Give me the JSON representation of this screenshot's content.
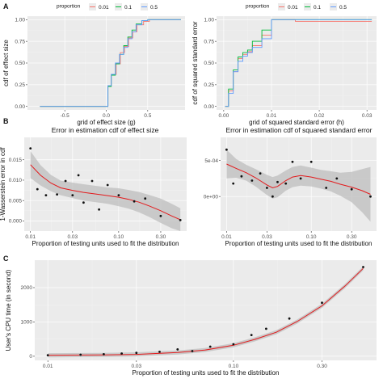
{
  "panel_labels": [
    "A",
    "B",
    "C"
  ],
  "colors": {
    "s001": "#F8766D",
    "s01": "#00BA38",
    "s05": "#619CFF",
    "smooth": "#e31a1c",
    "band": "#bdbdbd"
  },
  "chart_data": [
    {
      "type": "line",
      "panel": "A",
      "xlabel": "grid of effect size (g)",
      "ylabel": "cdf of effect size",
      "xlim": [
        -0.95,
        0.95
      ],
      "ylim": [
        -0.04,
        1.04
      ],
      "xticks": [
        -0.5,
        0.0,
        0.5
      ],
      "xtick_labels": [
        "-0.5",
        "0.0",
        "0.5"
      ],
      "yticks": [
        0,
        0.25,
        0.5,
        0.75,
        1
      ],
      "ytick_labels": [
        "0.00",
        "0.25",
        "0.50",
        "0.75",
        "1.00"
      ],
      "legend": {
        "title": "proportion",
        "placement": "top",
        "labels": [
          "0.01",
          "0.1",
          "0.5"
        ]
      },
      "series": [
        {
          "name": "0.01",
          "color": "#F8766D",
          "x": [
            -0.8,
            0.02,
            0.02,
            0.06,
            0.06,
            0.12,
            0.12,
            0.17,
            0.17,
            0.22,
            0.22,
            0.27,
            0.27,
            0.32,
            0.32,
            0.37,
            0.37,
            0.45,
            0.45,
            0.52,
            0.52,
            0.9
          ],
          "y": [
            0,
            0,
            0.24,
            0.24,
            0.37,
            0.37,
            0.49,
            0.49,
            0.62,
            0.62,
            0.69,
            0.69,
            0.79,
            0.79,
            0.86,
            0.86,
            0.94,
            0.94,
            0.98,
            0.98,
            1.0,
            1.0
          ]
        },
        {
          "name": "0.1",
          "color": "#00BA38",
          "x": [
            -0.8,
            0.02,
            0.02,
            0.06,
            0.06,
            0.11,
            0.11,
            0.16,
            0.16,
            0.21,
            0.21,
            0.26,
            0.26,
            0.31,
            0.31,
            0.36,
            0.36,
            0.43,
            0.43,
            0.5,
            0.5,
            0.9
          ],
          "y": [
            0,
            0,
            0.23,
            0.23,
            0.36,
            0.36,
            0.49,
            0.49,
            0.6,
            0.6,
            0.7,
            0.7,
            0.8,
            0.8,
            0.88,
            0.88,
            0.95,
            0.95,
            0.99,
            0.99,
            1.0,
            1.0
          ]
        },
        {
          "name": "0.5",
          "color": "#619CFF",
          "x": [
            -0.8,
            0.02,
            0.02,
            0.06,
            0.06,
            0.11,
            0.11,
            0.16,
            0.16,
            0.21,
            0.21,
            0.26,
            0.26,
            0.31,
            0.31,
            0.36,
            0.36,
            0.43,
            0.43,
            0.5,
            0.5,
            0.9
          ],
          "y": [
            0,
            0,
            0.24,
            0.24,
            0.37,
            0.37,
            0.5,
            0.5,
            0.6,
            0.6,
            0.68,
            0.68,
            0.78,
            0.78,
            0.86,
            0.86,
            0.94,
            0.94,
            0.99,
            0.99,
            1.0,
            1.0
          ]
        }
      ]
    },
    {
      "type": "line",
      "panel": "A",
      "xlabel": "grid of squared standard error (h)",
      "ylabel": "cdf of squared standard error",
      "xlim": [
        -0.0015,
        0.032
      ],
      "ylim": [
        -0.04,
        1.04
      ],
      "xticks": [
        0.0,
        0.01,
        0.02,
        0.03
      ],
      "xtick_labels": [
        "0.00",
        "0.01",
        "0.02",
        "0.03"
      ],
      "yticks": [
        0,
        0.25,
        0.5,
        0.75,
        1
      ],
      "ytick_labels": [
        "0.00",
        "0.25",
        "0.50",
        "0.75",
        "1.00"
      ],
      "legend": {
        "title": "proportion",
        "placement": "top",
        "labels": [
          "0.01",
          "0.1",
          "0.5"
        ]
      },
      "series": [
        {
          "name": "0.01",
          "color": "#F8766D",
          "x": [
            0.0003,
            0.001,
            0.001,
            0.002,
            0.002,
            0.003,
            0.003,
            0.004,
            0.004,
            0.005,
            0.005,
            0.006,
            0.006,
            0.008,
            0.008,
            0.01,
            0.01,
            0.015,
            0.015,
            0.031
          ],
          "y": [
            0.0,
            0.0,
            0.18,
            0.18,
            0.4,
            0.4,
            0.55,
            0.55,
            0.6,
            0.6,
            0.63,
            0.63,
            0.7,
            0.7,
            0.82,
            0.82,
            1.0,
            1.0,
            0.98,
            0.98
          ]
        },
        {
          "name": "0.1",
          "color": "#00BA38",
          "x": [
            0.0003,
            0.001,
            0.001,
            0.002,
            0.002,
            0.003,
            0.003,
            0.004,
            0.004,
            0.005,
            0.005,
            0.006,
            0.006,
            0.008,
            0.008,
            0.01,
            0.01,
            0.031
          ],
          "y": [
            0.0,
            0.0,
            0.2,
            0.2,
            0.42,
            0.42,
            0.57,
            0.57,
            0.62,
            0.62,
            0.65,
            0.65,
            0.75,
            0.75,
            0.88,
            0.88,
            1.0,
            1.0
          ]
        },
        {
          "name": "0.5",
          "color": "#619CFF",
          "x": [
            0.0003,
            0.001,
            0.001,
            0.002,
            0.002,
            0.003,
            0.003,
            0.004,
            0.004,
            0.005,
            0.005,
            0.006,
            0.006,
            0.008,
            0.008,
            0.01,
            0.01,
            0.031
          ],
          "y": [
            0.0,
            0.0,
            0.15,
            0.15,
            0.4,
            0.4,
            0.52,
            0.52,
            0.58,
            0.58,
            0.62,
            0.62,
            0.68,
            0.68,
            0.78,
            0.78,
            1.0,
            1.0
          ]
        }
      ]
    },
    {
      "type": "scatter",
      "panel": "B",
      "title": "Error in estimation cdf of effect size",
      "xlabel": "Proportion of testing units used to fit the distribution",
      "ylabel": "1-Wasserstein error in cdf",
      "x_scale": "log",
      "xlim": [
        0.0085,
        0.59
      ],
      "ylim": [
        -0.0025,
        0.0205
      ],
      "xticks": [
        0.01,
        0.03,
        0.1,
        0.3
      ],
      "xtick_labels": [
        "0.01",
        "0.03",
        "0.10",
        "0.30"
      ],
      "yticks": [
        0.0,
        0.005,
        0.01,
        0.015
      ],
      "ytick_labels": [
        "0.000",
        "0.005",
        "0.010",
        "0.015"
      ],
      "points": {
        "x": [
          0.01,
          0.012,
          0.015,
          0.02,
          0.025,
          0.03,
          0.035,
          0.04,
          0.05,
          0.06,
          0.075,
          0.1,
          0.15,
          0.2,
          0.3,
          0.5
        ],
        "y": [
          0.0178,
          0.0078,
          0.0063,
          0.0065,
          0.0098,
          0.0063,
          0.0112,
          0.0045,
          0.0098,
          0.0028,
          0.0088,
          0.0063,
          0.0048,
          0.0055,
          0.0012,
          0.0002
        ]
      },
      "smooth": {
        "x": [
          0.01,
          0.013,
          0.017,
          0.022,
          0.03,
          0.04,
          0.055,
          0.075,
          0.1,
          0.13,
          0.17,
          0.22,
          0.3,
          0.4,
          0.5
        ],
        "y": [
          0.0138,
          0.0112,
          0.0093,
          0.0081,
          0.0075,
          0.007,
          0.0066,
          0.0062,
          0.0058,
          0.0053,
          0.0046,
          0.0037,
          0.0025,
          0.0012,
          0.0003
        ],
        "lower": [
          0.0105,
          0.0087,
          0.0073,
          0.0063,
          0.0056,
          0.005,
          0.0046,
          0.0042,
          0.0036,
          0.003,
          0.0021,
          0.001,
          -0.0005,
          -0.0018,
          -0.0025
        ],
        "upper": [
          0.0171,
          0.0137,
          0.0113,
          0.0099,
          0.0094,
          0.009,
          0.0086,
          0.0082,
          0.008,
          0.0076,
          0.0071,
          0.0064,
          0.0055,
          0.0042,
          0.0031
        ]
      }
    },
    {
      "type": "scatter",
      "panel": "B",
      "title": "Error in estimation cdf of squared standard error",
      "xlabel": "Proportion of testing units used to fit the distribution",
      "ylabel": "",
      "x_scale": "log",
      "xlim": [
        0.0085,
        0.59
      ],
      "ylim": [
        -0.00048,
        0.00082
      ],
      "xticks": [
        0.01,
        0.03,
        0.1,
        0.3
      ],
      "xtick_labels": [
        "0.01",
        "0.03",
        "0.10",
        "0.30"
      ],
      "yticks": [
        0.0,
        0.0005
      ],
      "ytick_labels": [
        "0e+00",
        "5e-04"
      ],
      "points": {
        "x": [
          0.01,
          0.012,
          0.015,
          0.02,
          0.025,
          0.03,
          0.035,
          0.04,
          0.05,
          0.06,
          0.075,
          0.1,
          0.15,
          0.2,
          0.3,
          0.5
        ],
        "y": [
          0.00065,
          0.00018,
          0.00028,
          0.00022,
          0.00032,
          0.00012,
          0.0,
          0.0002,
          0.00018,
          0.00048,
          0.00025,
          0.00048,
          0.00012,
          0.00025,
          0.0001,
          0.0
        ]
      },
      "smooth": {
        "x": [
          0.01,
          0.013,
          0.017,
          0.022,
          0.03,
          0.035,
          0.04,
          0.05,
          0.06,
          0.075,
          0.1,
          0.13,
          0.17,
          0.22,
          0.3,
          0.4,
          0.5
        ],
        "y": [
          0.00045,
          0.00039,
          0.00033,
          0.00026,
          0.00016,
          0.00012,
          0.00014,
          0.00022,
          0.00027,
          0.00029,
          0.00027,
          0.00024,
          0.00021,
          0.00017,
          0.00013,
          8e-05,
          3e-05
        ],
        "lower": [
          0.00025,
          0.00026,
          0.00022,
          0.00014,
          2e-05,
          -3e-05,
          -1e-05,
          8e-05,
          0.00013,
          0.00015,
          0.00014,
          0.00011,
          7e-05,
          1e-05,
          -8e-05,
          -0.00022,
          -0.00035
        ],
        "upper": [
          0.00065,
          0.00052,
          0.00044,
          0.00038,
          0.0003,
          0.00027,
          0.00029,
          0.00036,
          0.00041,
          0.00043,
          0.0004,
          0.00037,
          0.00035,
          0.00033,
          0.00034,
          0.00038,
          0.00041
        ]
      }
    },
    {
      "type": "scatter",
      "panel": "C",
      "xlabel": "Proportion of testing units used to fit the distribution",
      "ylabel": "User's CPU time (in second)",
      "x_scale": "log",
      "xlim": [
        0.0085,
        0.59
      ],
      "ylim": [
        -120,
        2800
      ],
      "xticks": [
        0.01,
        0.03,
        0.1,
        0.3
      ],
      "xtick_labels": [
        "0.01",
        "0.03",
        "0.10",
        "0.30"
      ],
      "yticks": [
        0,
        1000,
        2000
      ],
      "ytick_labels": [
        "0",
        "1000",
        "2000"
      ],
      "points": {
        "x": [
          0.01,
          0.015,
          0.02,
          0.025,
          0.03,
          0.04,
          0.05,
          0.06,
          0.075,
          0.1,
          0.125,
          0.15,
          0.2,
          0.3,
          0.5
        ],
        "y": [
          30,
          45,
          60,
          80,
          100,
          130,
          200,
          150,
          280,
          350,
          620,
          800,
          1100,
          1560,
          2600
        ]
      },
      "smooth": {
        "x": [
          0.01,
          0.02,
          0.03,
          0.05,
          0.07,
          0.1,
          0.13,
          0.17,
          0.22,
          0.3,
          0.4,
          0.5
        ],
        "y": [
          30,
          40,
          55,
          110,
          180,
          320,
          490,
          700,
          1010,
          1470,
          2050,
          2560
        ],
        "band": 60
      }
    }
  ]
}
